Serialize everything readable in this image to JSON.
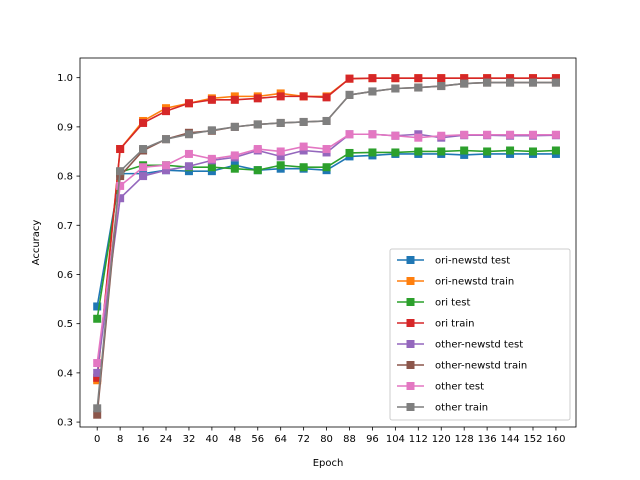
{
  "chart_data": {
    "type": "line",
    "xlabel": "Epoch",
    "ylabel": "Accuracy",
    "xlim": [
      -6,
      167
    ],
    "ylim": [
      0.29,
      1.04
    ],
    "xticks": [
      0,
      8,
      16,
      24,
      32,
      40,
      48,
      56,
      64,
      72,
      80,
      88,
      96,
      104,
      112,
      120,
      128,
      136,
      144,
      152,
      160
    ],
    "yticks": [
      0.3,
      0.4,
      0.5,
      0.6,
      0.7,
      0.8,
      0.9,
      1.0
    ],
    "ytick_labels": [
      "0.3",
      "0.4",
      "0.5",
      "0.6",
      "0.7",
      "0.8",
      "0.9",
      "1.0"
    ],
    "legend_position": "lower-right",
    "grid": false,
    "x": [
      0,
      8,
      16,
      24,
      32,
      40,
      48,
      56,
      64,
      72,
      80,
      88,
      96,
      104,
      112,
      120,
      128,
      136,
      144,
      152,
      160
    ],
    "series": [
      {
        "name": "ori-newstd test",
        "color": "#1f77b4",
        "values": [
          0.535,
          0.805,
          0.805,
          0.812,
          0.81,
          0.81,
          0.822,
          0.812,
          0.815,
          0.815,
          0.812,
          0.84,
          0.842,
          0.845,
          0.845,
          0.845,
          0.843,
          0.845,
          0.845,
          0.845,
          0.845
        ]
      },
      {
        "name": "ori-newstd train",
        "color": "#ff7f0e",
        "values": [
          0.385,
          0.855,
          0.912,
          0.938,
          0.948,
          0.958,
          0.962,
          0.962,
          0.968,
          0.962,
          0.962,
          0.998,
          0.999,
          0.999,
          0.999,
          0.999,
          0.999,
          0.999,
          0.999,
          0.999,
          0.999
        ]
      },
      {
        "name": "ori test",
        "color": "#2ca02c",
        "values": [
          0.51,
          0.808,
          0.822,
          0.822,
          0.818,
          0.818,
          0.815,
          0.812,
          0.822,
          0.818,
          0.818,
          0.847,
          0.848,
          0.848,
          0.85,
          0.85,
          0.852,
          0.85,
          0.852,
          0.85,
          0.852
        ]
      },
      {
        "name": "ori train",
        "color": "#d62728",
        "values": [
          0.39,
          0.855,
          0.908,
          0.932,
          0.948,
          0.955,
          0.955,
          0.958,
          0.962,
          0.962,
          0.96,
          0.998,
          0.999,
          0.999,
          0.999,
          0.999,
          0.999,
          0.999,
          0.999,
          0.999,
          0.999
        ]
      },
      {
        "name": "other-newstd test",
        "color": "#9467bd",
        "values": [
          0.4,
          0.755,
          0.8,
          0.812,
          0.82,
          0.832,
          0.838,
          0.852,
          0.84,
          0.852,
          0.848,
          0.885,
          0.885,
          0.882,
          0.885,
          0.878,
          0.883,
          0.883,
          0.882,
          0.882,
          0.883
        ]
      },
      {
        "name": "other-newstd train",
        "color": "#8c564b",
        "values": [
          0.315,
          0.8,
          0.852,
          0.875,
          0.888,
          0.892,
          0.9,
          0.905,
          0.908,
          0.91,
          0.912,
          0.965,
          0.972,
          0.978,
          0.98,
          0.983,
          0.988,
          0.99,
          0.99,
          0.99,
          0.99
        ]
      },
      {
        "name": "other test",
        "color": "#e377c2",
        "values": [
          0.42,
          0.78,
          0.818,
          0.822,
          0.845,
          0.835,
          0.842,
          0.855,
          0.85,
          0.86,
          0.855,
          0.885,
          0.885,
          0.882,
          0.878,
          0.882,
          0.884,
          0.884,
          0.884,
          0.884,
          0.884
        ]
      },
      {
        "name": "other train",
        "color": "#7f7f7f",
        "values": [
          0.328,
          0.81,
          0.855,
          0.875,
          0.885,
          0.893,
          0.9,
          0.905,
          0.908,
          0.91,
          0.912,
          0.965,
          0.972,
          0.978,
          0.98,
          0.983,
          0.988,
          0.99,
          0.99,
          0.99,
          0.99
        ]
      }
    ]
  }
}
